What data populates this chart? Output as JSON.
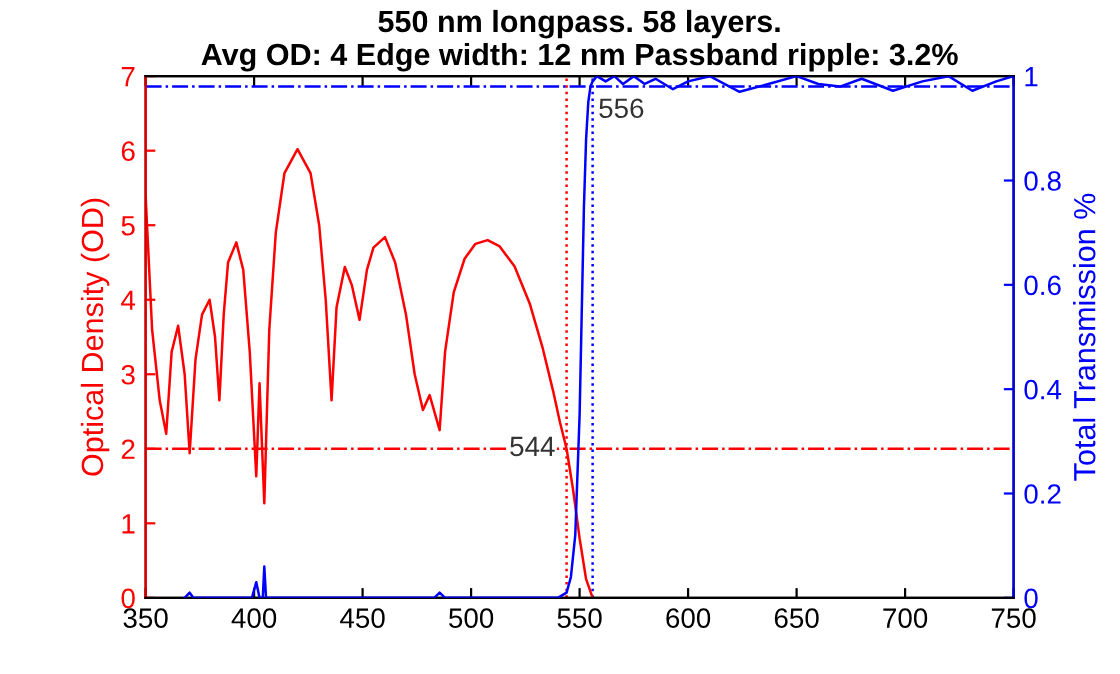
{
  "chart_data": {
    "type": "line",
    "title": "550 nm longpass. 58 layers.\nAvg OD: 4 Edge width: 12 nm Passband ripple: 3.2%",
    "ylabel": "Optical Density (OD)",
    "y2label": "Total Transmission %",
    "series": [
      {
        "color": "#ff0000",
        "x": [
          350,
          353,
          356.5,
          359.5,
          362,
          365,
          368,
          370.3,
          373,
          376,
          379.5,
          382,
          384,
          386,
          388,
          391.8,
          395,
          398,
          401,
          402.5,
          404.7,
          407,
          410,
          414,
          420,
          426,
          430,
          433,
          435.7,
          438,
          441.8,
          445,
          448.6,
          452,
          455,
          460.3,
          465,
          470,
          474,
          477.8,
          480.9,
          485.5,
          488,
          492,
          497,
          502,
          507.6,
          513,
          520,
          527,
          533,
          538,
          541,
          544,
          547,
          550,
          553,
          556
        ],
        "values": [
          5.4,
          3.6,
          2.65,
          2.2,
          3.3,
          3.65,
          3.0,
          1.94,
          3.2,
          3.8,
          4.0,
          3.5,
          2.65,
          3.8,
          4.5,
          4.77,
          4.4,
          3.3,
          1.63,
          2.88,
          1.27,
          3.6,
          4.9,
          5.7,
          6.02,
          5.7,
          5.0,
          4.0,
          2.65,
          3.9,
          4.44,
          4.2,
          3.73,
          4.4,
          4.7,
          4.84,
          4.5,
          3.8,
          3.0,
          2.52,
          2.72,
          2.25,
          3.3,
          4.1,
          4.55,
          4.75,
          4.8,
          4.72,
          4.45,
          3.95,
          3.35,
          2.75,
          2.35,
          2.0,
          1.45,
          0.8,
          0.25,
          0.0
        ]
      },
      {
        "color": "#0000ff",
        "axis": "y2",
        "x": [
          368,
          370.3,
          372,
          399,
          401,
          402.5,
          404,
          404.7,
          405.5,
          408,
          483,
          485.5,
          488,
          540,
          544,
          546,
          548,
          550,
          551,
          552,
          553,
          554,
          555,
          556,
          558,
          562,
          566,
          570,
          575,
          580,
          585,
          593,
          600,
          610,
          623.7,
          637,
          650,
          660,
          670,
          680,
          694.4,
          708,
          720,
          731,
          742,
          750
        ],
        "values": [
          0,
          0.01,
          0,
          0,
          0.03,
          0,
          0,
          0.06,
          0,
          0,
          0,
          0.01,
          0,
          0,
          0.01,
          0.04,
          0.12,
          0.35,
          0.55,
          0.75,
          0.88,
          0.95,
          0.98,
          0.99,
          1.0,
          0.99,
          1.0,
          0.985,
          1.0,
          0.985,
          0.995,
          0.975,
          0.99,
          1.0,
          0.97,
          0.985,
          1.0,
          0.985,
          0.98,
          0.995,
          0.972,
          0.99,
          1.0,
          0.972,
          0.99,
          1.0
        ]
      }
    ],
    "xlim": [
      350,
      750
    ],
    "xticks": [
      350,
      400,
      450,
      500,
      550,
      600,
      650,
      700,
      750
    ],
    "ylim": [
      0,
      7
    ],
    "yticks": [
      0,
      1,
      2,
      3,
      4,
      5,
      6,
      7
    ],
    "y2lim": [
      0,
      1
    ],
    "y2ticks": [
      0,
      0.2,
      0.4,
      0.6,
      0.8,
      1
    ],
    "ref_lines": [
      {
        "axis": "x",
        "value": 544,
        "color": "#ff0000",
        "line_style": "dotted"
      },
      {
        "axis": "x",
        "value": 556,
        "color": "#0000ff",
        "line_style": "dotted"
      },
      {
        "axis": "y",
        "value": 2,
        "color": "#ff0000",
        "line_style": "dashdot"
      },
      {
        "axis": "y2",
        "value": 0.98,
        "color": "#0000ff",
        "line_style": "dashdot"
      }
    ],
    "annotations": [
      {
        "text": "544",
        "x": 544,
        "y": 2
      },
      {
        "text": "556",
        "x": 556,
        "y": 6.86
      }
    ],
    "grid": false,
    "legend": false,
    "marker": "none",
    "line_style": "solid"
  }
}
